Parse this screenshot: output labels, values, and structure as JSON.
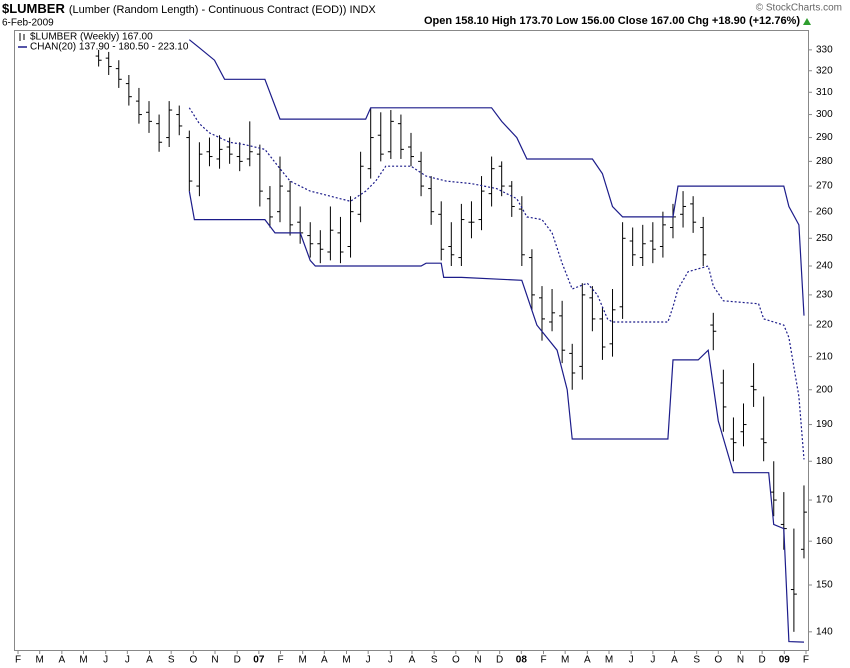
{
  "chart_data": {
    "type": "ohlc",
    "title": "$LUMBER",
    "subtitle": "(Lumber (Random Length) - Continuous Contract (EOD))  INDX",
    "date": "6-Feb-2009",
    "quote": "Open 158.10  High 173.70  Low 156.00  Close 167.00  Chg +18.90 (+12.76%)",
    "credit": "© StockCharts.com",
    "log": true,
    "legend": "upper left",
    "xlim": [
      -0.6,
      156.8
    ],
    "xticks": [
      {
        "value": 0,
        "label": "F"
      },
      {
        "value": 4.3,
        "label": "M"
      },
      {
        "value": 8.7,
        "label": "A"
      },
      {
        "value": 13,
        "label": "M"
      },
      {
        "value": 17.4,
        "label": "J"
      },
      {
        "value": 21.7,
        "label": "J"
      },
      {
        "value": 26.1,
        "label": "A"
      },
      {
        "value": 30.4,
        "label": "S"
      },
      {
        "value": 34.8,
        "label": "O"
      },
      {
        "value": 39.1,
        "label": "N"
      },
      {
        "value": 43.5,
        "label": "D"
      },
      {
        "value": 47.8,
        "label": "07"
      },
      {
        "value": 52.1,
        "label": "F"
      },
      {
        "value": 56.5,
        "label": "M"
      },
      {
        "value": 60.8,
        "label": "A"
      },
      {
        "value": 65.2,
        "label": "M"
      },
      {
        "value": 69.5,
        "label": "J"
      },
      {
        "value": 73.9,
        "label": "J"
      },
      {
        "value": 78.2,
        "label": "A"
      },
      {
        "value": 82.6,
        "label": "S"
      },
      {
        "value": 86.9,
        "label": "O"
      },
      {
        "value": 91.3,
        "label": "N"
      },
      {
        "value": 95.6,
        "label": "D"
      },
      {
        "value": 99.9,
        "label": "08"
      },
      {
        "value": 104.3,
        "label": "F"
      },
      {
        "value": 108.6,
        "label": "M"
      },
      {
        "value": 113,
        "label": "A"
      },
      {
        "value": 117.3,
        "label": "M"
      },
      {
        "value": 121.7,
        "label": "J"
      },
      {
        "value": 126,
        "label": "J"
      },
      {
        "value": 130.3,
        "label": "A"
      },
      {
        "value": 134.7,
        "label": "S"
      },
      {
        "value": 139,
        "label": "O"
      },
      {
        "value": 143.4,
        "label": "N"
      },
      {
        "value": 147.7,
        "label": "D"
      },
      {
        "value": 152.1,
        "label": "09"
      },
      {
        "value": 156.4,
        "label": "F"
      }
    ],
    "ylim": [
      136.3,
      339.3
    ],
    "yticks": [
      140,
      150,
      160,
      170,
      180,
      190,
      200,
      210,
      220,
      230,
      240,
      250,
      260,
      270,
      280,
      290,
      300,
      310,
      320,
      330
    ],
    "series": [
      {
        "name": "$LUMBER (Weekly) 167.00",
        "type": "ohlc",
        "color": "#000000",
        "x": [
          16,
          18,
          20,
          22,
          24,
          26,
          28,
          30,
          32,
          34,
          36,
          38,
          40,
          42,
          44,
          46,
          48,
          50,
          52,
          54,
          56,
          58,
          60,
          62,
          64,
          66,
          68,
          70,
          72,
          74,
          76,
          78,
          80,
          82,
          84,
          86,
          88,
          90,
          92,
          94,
          96,
          98,
          100,
          102,
          104,
          106,
          108,
          110,
          112,
          114,
          116,
          118,
          120,
          122,
          124,
          126,
          128,
          130,
          132,
          134,
          136,
          138,
          140,
          142,
          144,
          146,
          148,
          150,
          152,
          154,
          156
        ],
        "open": [
          327,
          326,
          321,
          314,
          306,
          301,
          296,
          290,
          300,
          290,
          270,
          284,
          281,
          286,
          282,
          281,
          283,
          265,
          260,
          268,
          256,
          251,
          248,
          245,
          252,
          247,
          259,
          277,
          291,
          284,
          296,
          286,
          280,
          269,
          259,
          247,
          243,
          256,
          257,
          267,
          278,
          270,
          261,
          243,
          229,
          221,
          223,
          211,
          207,
          229,
          222,
          214,
          226,
          249,
          243,
          249,
          247,
          254,
          259,
          263,
          254,
          220,
          202,
          186,
          188,
          201,
          186,
          172,
          164,
          149,
          158.1
        ],
        "high": [
          330,
          329,
          325,
          318,
          312,
          306,
          300,
          306,
          304,
          293,
          288,
          290,
          291,
          290,
          288,
          297,
          287,
          270,
          282,
          272,
          262,
          256,
          253,
          262,
          258,
          266,
          284,
          303,
          301,
          302,
          300,
          292,
          284,
          274,
          264,
          256,
          263,
          264,
          274,
          282,
          280,
          272,
          266,
          246,
          233,
          232,
          228,
          214,
          234,
          233,
          226,
          232,
          256,
          254,
          255,
          256,
          260,
          263,
          268,
          266,
          258,
          224,
          206,
          192,
          196,
          208,
          198,
          180,
          172,
          163,
          173.7
        ],
        "low": [
          322,
          318,
          312,
          304,
          296,
          292,
          284,
          286,
          291,
          268,
          266,
          278,
          277,
          279,
          276,
          278,
          262,
          254,
          256,
          251,
          248,
          243,
          241,
          242,
          241,
          243,
          256,
          273,
          280,
          281,
          281,
          278,
          266,
          255,
          242,
          240,
          240,
          250,
          253,
          262,
          266,
          258,
          240,
          225,
          215,
          218,
          208,
          200,
          203,
          218,
          209,
          210,
          222,
          240,
          240,
          241,
          243,
          250,
          254,
          252,
          240,
          212,
          188,
          180,
          184,
          195,
          180,
          166,
          158,
          140,
          156
        ],
        "close": [
          325,
          322,
          316,
          308,
          300,
          297,
          288,
          302,
          295,
          272,
          283,
          282,
          285,
          283,
          280,
          284,
          268,
          258,
          270,
          255,
          252,
          248,
          246,
          253,
          245,
          260,
          278,
          290,
          283,
          297,
          285,
          282,
          270,
          260,
          246,
          244,
          257,
          256,
          268,
          277,
          270,
          262,
          244,
          230,
          222,
          224,
          212,
          205,
          230,
          222,
          213,
          225,
          250,
          244,
          248,
          246,
          255,
          258,
          262,
          256,
          244,
          218,
          195,
          185,
          190,
          200,
          185,
          170,
          163,
          148,
          167
        ]
      },
      {
        "name": "CHAN(20) 137.90 - 180.50 - 223.10",
        "type": "line",
        "color": "#1c1c8a",
        "x": [
          34,
          36,
          39,
          41,
          49,
          52,
          69,
          70,
          94,
          96,
          99,
          101,
          114,
          116,
          118,
          120,
          130,
          131,
          152,
          153,
          155,
          156
        ],
        "values": [
          335,
          331,
          325,
          316,
          316,
          298,
          298,
          303,
          303,
          297,
          290,
          281,
          281,
          275,
          262,
          258,
          258,
          270,
          270,
          262,
          255,
          223.1
        ]
      },
      {
        "type": "line",
        "style": "dotted",
        "color": "#1c1c8a",
        "x": [
          34,
          36,
          38,
          42,
          45,
          49,
          52,
          54,
          58,
          60,
          62,
          66,
          69,
          71,
          73,
          78,
          81,
          85,
          90,
          95,
          99,
          101,
          104,
          106,
          108,
          110,
          113,
          115,
          117,
          118,
          129,
          130,
          131,
          133,
          137,
          138,
          140,
          147,
          148,
          152,
          153,
          155,
          156
        ],
        "values": [
          303,
          296,
          292,
          288,
          287,
          285,
          277,
          272,
          268,
          267,
          266,
          264,
          268,
          272,
          278,
          278,
          274,
          272,
          271,
          269,
          265,
          258,
          257,
          252,
          241,
          232,
          234,
          230,
          222,
          221,
          221,
          226,
          232,
          238,
          240,
          233,
          228,
          227,
          222,
          220,
          216,
          198,
          180.5
        ]
      },
      {
        "type": "line",
        "color": "#1c1c8a",
        "x": [
          34,
          35,
          49,
          51,
          56,
          58,
          59,
          80,
          81,
          84,
          84.5,
          88,
          100,
          103,
          107,
          109,
          110,
          129,
          130,
          135,
          137,
          139,
          142,
          149,
          150,
          152,
          153,
          156
        ],
        "values": [
          268,
          257,
          257,
          252,
          252,
          242,
          240,
          240,
          241,
          241,
          236,
          236,
          235,
          220,
          212,
          200,
          186,
          186,
          209,
          209,
          212,
          191,
          177,
          177,
          164,
          163,
          138,
          137.9
        ]
      }
    ]
  }
}
